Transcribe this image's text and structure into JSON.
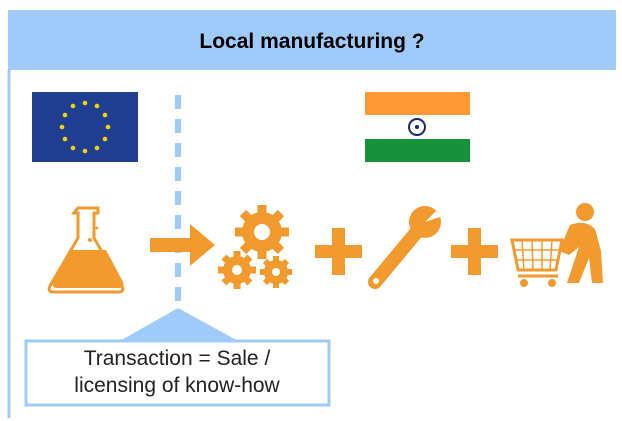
{
  "header": {
    "title": "Local manufacturing ?"
  },
  "callout": {
    "lines": [
      "Transaction = Sale /",
      "licensing of know-how"
    ]
  }
}
